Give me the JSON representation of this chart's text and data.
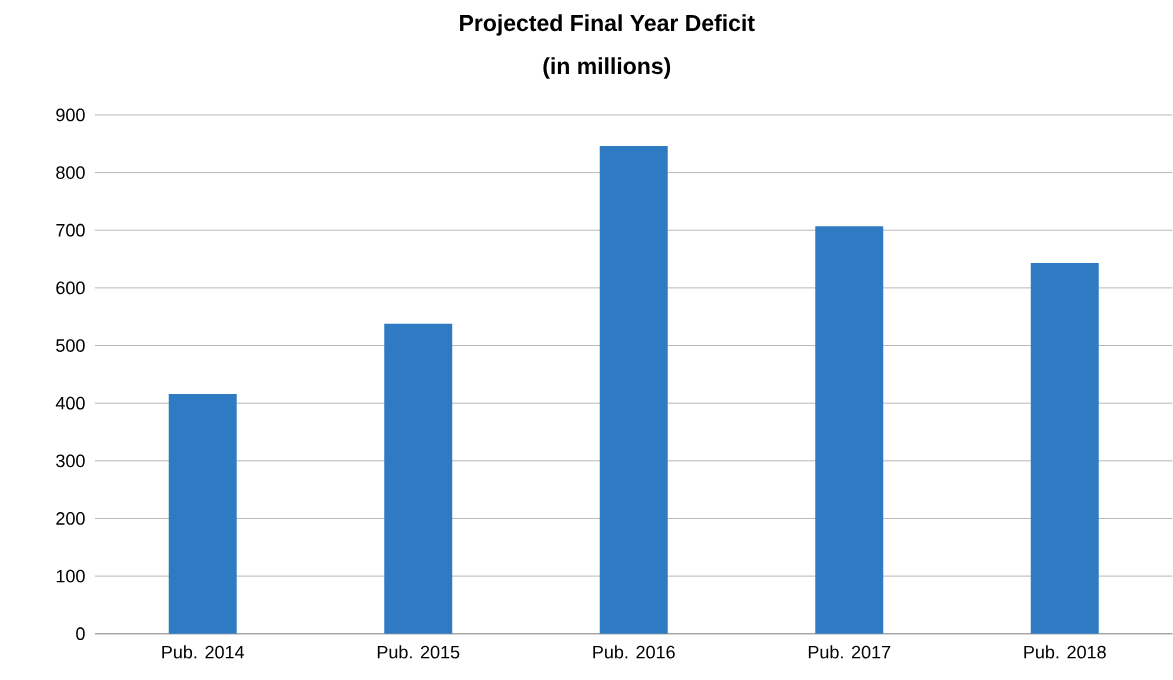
{
  "chart_data": {
    "type": "bar",
    "title": "Projected Final Year Deficit",
    "subtitle": "(in millions)",
    "categories": [
      "Pub. 2014",
      "Pub. 2015",
      "Pub. 2016",
      "Pub. 2017",
      "Pub. 2018"
    ],
    "values": [
      416,
      538,
      846,
      707,
      643
    ],
    "color": "#2e7bc4",
    "ylim": [
      0,
      900
    ],
    "yticks": [
      0,
      100,
      200,
      300,
      400,
      500,
      600,
      700,
      800,
      900
    ],
    "grid": "y"
  }
}
